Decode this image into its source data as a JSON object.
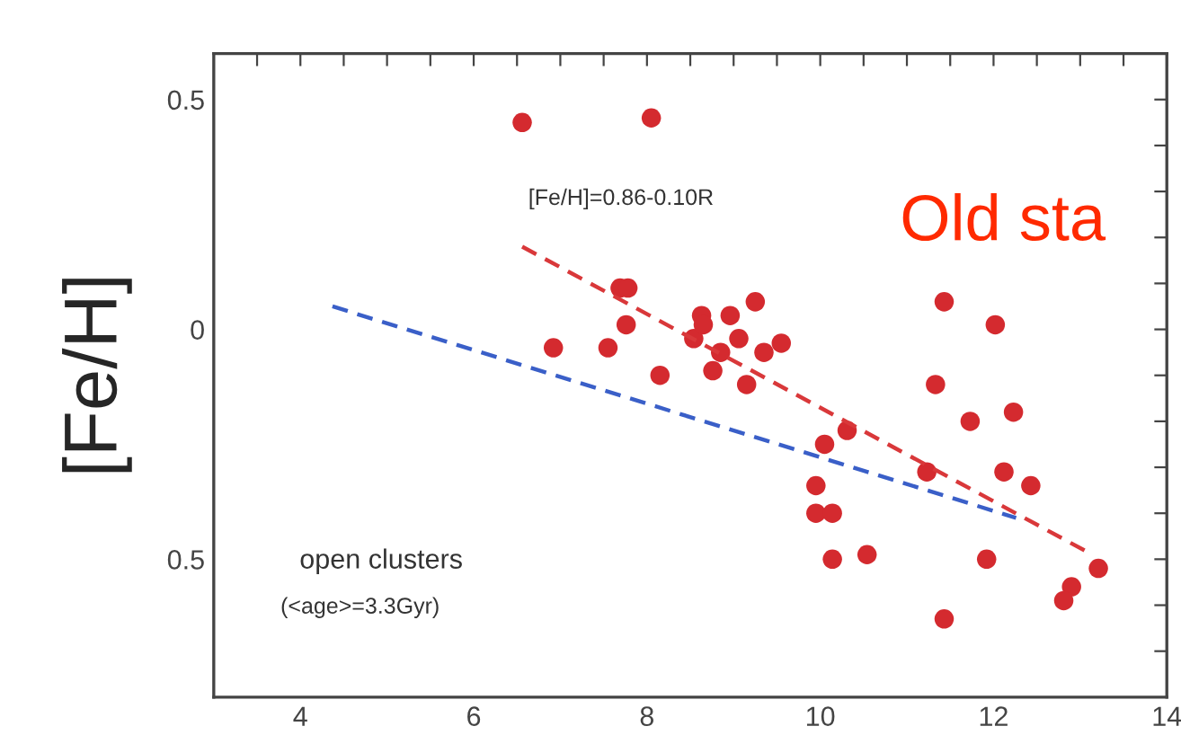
{
  "chart_data": {
    "type": "scatter",
    "ylabel": "[Fe/H]",
    "annotations": [
      "[Fe/H]=0.86-0.10R",
      "open clusters",
      "(<age>=3.3Gyr)",
      "Old sta"
    ],
    "xlim": [
      3,
      14
    ],
    "ylim": [
      -0.8,
      0.6
    ],
    "xticks": [
      {
        "value": 3.5,
        "label": null
      },
      4,
      {
        "value": 4.5,
        "label": null
      },
      {
        "value": 5,
        "label": null
      },
      {
        "value": 5.5,
        "label": null
      },
      6,
      {
        "value": 6.5,
        "label": null
      },
      {
        "value": 7,
        "label": null
      },
      {
        "value": 7.5,
        "label": null
      },
      8,
      {
        "value": 8.5,
        "label": null
      },
      {
        "value": 9,
        "label": null
      },
      {
        "value": 9.5,
        "label": null
      },
      10,
      {
        "value": 10.5,
        "label": null
      },
      {
        "value": 11,
        "label": null
      },
      {
        "value": 11.5,
        "label": null
      },
      12,
      {
        "value": 12.5,
        "label": null
      },
      {
        "value": 13,
        "label": null
      },
      {
        "value": 13.5,
        "label": null
      },
      14
    ],
    "yticks": [
      {
        "value": -0.7,
        "label": null
      },
      {
        "value": -0.6,
        "label": null
      },
      {
        "value": -0.5,
        "label": "0.5"
      },
      {
        "value": -0.4,
        "label": null
      },
      {
        "value": -0.3,
        "label": null
      },
      {
        "value": -0.2,
        "label": null
      },
      {
        "value": -0.1,
        "label": null
      },
      0,
      {
        "value": 0.1,
        "label": null
      },
      {
        "value": 0.2,
        "label": null
      },
      {
        "value": 0.3,
        "label": null
      },
      {
        "value": 0.4,
        "label": null
      },
      0.5
    ],
    "grid": false,
    "marker": "circle",
    "series": [
      {
        "color": "#d42a2f",
        "x": [
          6.56,
          8.05,
          7.69,
          7.78,
          7.76,
          6.92,
          7.55,
          8.15,
          8.54,
          8.63,
          8.65,
          8.96,
          9.06,
          9.25,
          8.85,
          8.76,
          9.15,
          9.35,
          9.55,
          11.43,
          12.02,
          11.33,
          11.73,
          12.23,
          10.31,
          10.05,
          11.23,
          12.12,
          12.43,
          9.95,
          9.95,
          10.14,
          10.14,
          10.54,
          11.92,
          13.21,
          12.9,
          12.81,
          11.43
        ],
        "values": [
          0.45,
          0.46,
          0.09,
          0.09,
          0.01,
          -0.04,
          -0.04,
          -0.1,
          -0.02,
          0.03,
          0.01,
          0.03,
          -0.02,
          0.06,
          -0.05,
          -0.09,
          -0.12,
          -0.05,
          -0.03,
          0.06,
          0.01,
          -0.12,
          -0.2,
          -0.18,
          -0.22,
          -0.25,
          -0.31,
          -0.31,
          -0.34,
          -0.34,
          -0.4,
          -0.4,
          -0.5,
          -0.49,
          -0.5,
          -0.52,
          -0.56,
          -0.59,
          -0.63
        ]
      },
      {
        "type": "line",
        "color": "#d9383a",
        "line_style": "dashed",
        "marker": "none",
        "x": [
          6.56,
          13.14
        ],
        "values": [
          0.18,
          -0.49
        ]
      },
      {
        "type": "line",
        "color": "#3a5fc8",
        "line_style": "dashed",
        "marker": "none",
        "x": [
          4.37,
          12.26
        ],
        "values": [
          0.05,
          -0.41
        ]
      }
    ]
  }
}
